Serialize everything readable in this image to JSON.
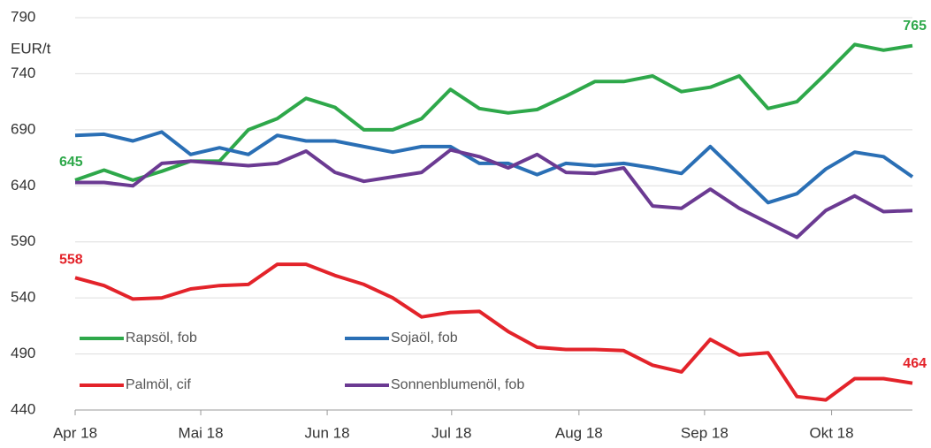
{
  "chart_data": {
    "type": "line",
    "y_label": "EUR/t",
    "x": [
      0,
      1,
      2,
      3,
      4,
      5,
      6,
      7,
      8,
      9,
      10,
      11,
      12,
      13,
      14,
      15,
      16,
      17,
      18,
      19,
      20,
      21,
      22,
      23,
      24,
      25,
      26,
      27,
      28,
      29
    ],
    "xlim": [
      0,
      29
    ],
    "xticks": [
      {
        "value": 0,
        "label": "Apr 18"
      },
      {
        "value": 4.35,
        "label": "Mai 18"
      },
      {
        "value": 8.73,
        "label": "Jun 18"
      },
      {
        "value": 13.04,
        "label": "Jul 18"
      },
      {
        "value": 17.45,
        "label": "Aug 18"
      },
      {
        "value": 21.8,
        "label": "Sep 18"
      },
      {
        "value": 26.2,
        "label": "Okt 18"
      }
    ],
    "ylim": [
      440,
      790
    ],
    "yticks": [
      440,
      490,
      540,
      590,
      640,
      690,
      740,
      790
    ],
    "grid": true,
    "legend": "lower left",
    "series": [
      {
        "name": "Rapsöl, fob",
        "color": "#2ea84a",
        "labels": true,
        "values": [
          645,
          654,
          645,
          653,
          662,
          662,
          690,
          700,
          718,
          710,
          690,
          690,
          700,
          726,
          709,
          705,
          708,
          720,
          733,
          733,
          738,
          724,
          728,
          738,
          709,
          715,
          740,
          766,
          761,
          765
        ]
      },
      {
        "name": "Sojaöl, fob",
        "color": "#2a6fb5",
        "labels": false,
        "values": [
          685,
          686,
          680,
          688,
          668,
          674,
          668,
          685,
          680,
          680,
          675,
          670,
          675,
          675,
          660,
          660,
          650,
          660,
          658,
          660,
          656,
          651,
          675,
          650,
          625,
          633,
          655,
          670,
          666,
          648
        ]
      },
      {
        "name": "Palmöl, cif",
        "color": "#e3232a",
        "labels": true,
        "values": [
          558,
          551,
          539,
          540,
          548,
          551,
          552,
          570,
          570,
          560,
          552,
          540,
          523,
          527,
          528,
          510,
          496,
          494,
          494,
          493,
          480,
          474,
          503,
          489,
          491,
          452,
          449,
          468,
          468,
          464
        ]
      },
      {
        "name": "Sonnenblumenöl, fob",
        "color": "#6b3a92",
        "labels": false,
        "values": [
          643,
          643,
          640,
          660,
          662,
          660,
          658,
          660,
          671,
          652,
          644,
          648,
          652,
          672,
          666,
          656,
          668,
          652,
          651,
          656,
          622,
          620,
          637,
          620,
          607,
          594,
          618,
          631,
          617,
          618
        ]
      }
    ]
  }
}
